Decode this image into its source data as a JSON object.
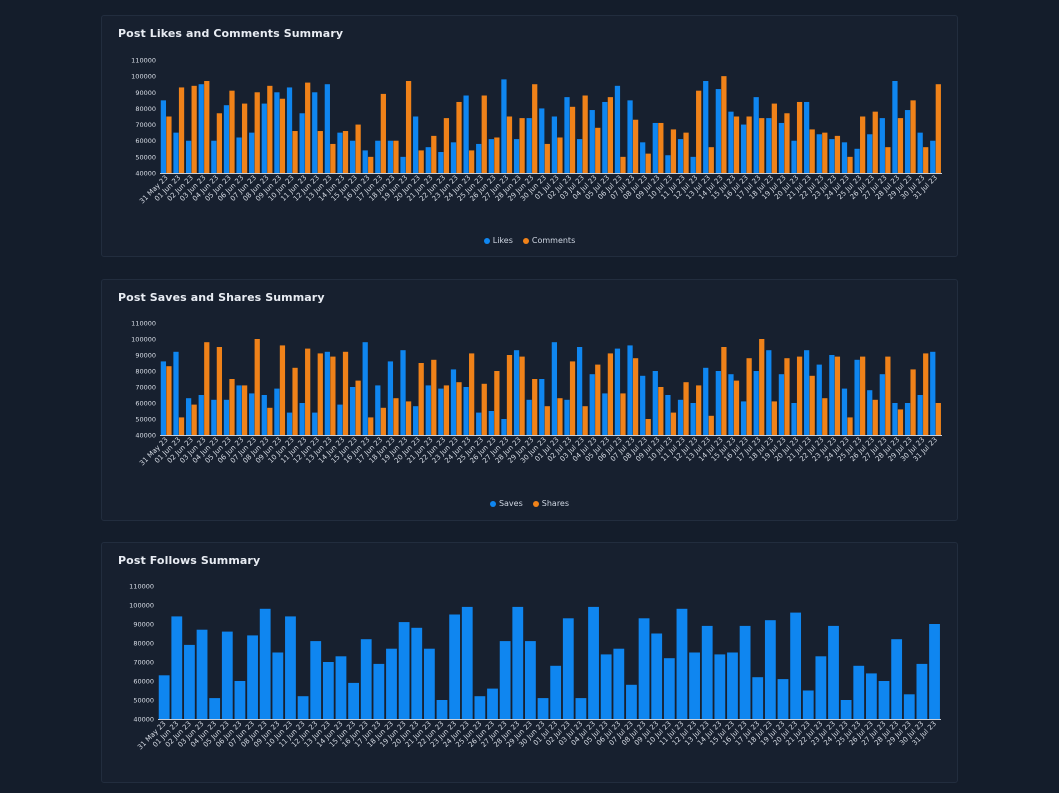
{
  "colors": {
    "blue": "#0f86f0",
    "orange": "#f08219",
    "axis": "#c9cfd9",
    "text": "#d9dee7"
  },
  "dates": [
    "31 May 23",
    "01 Jun 23",
    "02 Jun 23",
    "03 Jun 23",
    "04 Jun 23",
    "05 Jun 23",
    "06 Jun 23",
    "07 Jun 23",
    "08 Jun 23",
    "09 Jun 23",
    "10 Jun 23",
    "11 Jun 23",
    "12 Jun 23",
    "13 Jun 23",
    "14 Jun 23",
    "15 Jun 23",
    "16 Jun 23",
    "17 Jun 23",
    "18 Jun 23",
    "19 Jun 23",
    "20 Jun 23",
    "21 Jun 23",
    "22 Jun 23",
    "23 Jun 23",
    "24 Jun 23",
    "25 Jun 23",
    "26 Jun 23",
    "27 Jun 23",
    "28 Jun 23",
    "29 Jun 23",
    "30 Jun 23",
    "01 Jul 23",
    "02 Jul 23",
    "03 Jul 23",
    "04 Jul 23",
    "05 Jul 23",
    "06 Jul 23",
    "07 Jul 23",
    "08 Jul 23",
    "09 Jul 23",
    "10 Jul 23",
    "11 Jul 23",
    "12 Jul 23",
    "13 Jul 23",
    "14 Jul 23",
    "15 Jul 23",
    "16 Jul 23",
    "17 Jul 23",
    "18 Jul 23",
    "19 Jul 23",
    "20 Jul 23",
    "21 Jul 23",
    "22 Jul 23",
    "23 Jul 23",
    "24 Jul 23",
    "25 Jul 23",
    "26 Jul 23",
    "27 Jul 23",
    "28 Jul 23",
    "29 Jul 23",
    "30 Jul 23",
    "31 Jul 23"
  ],
  "chart_data": [
    {
      "type": "bar",
      "title": "Post Likes and Comments Summary",
      "ylim": [
        40000,
        110000
      ],
      "yticks": [
        "110000",
        "100000",
        "90000",
        "80000",
        "70000",
        "60000",
        "50000",
        "40000"
      ],
      "legend_position": "bottom-center",
      "series": [
        {
          "name": "Likes",
          "color": "#0f86f0",
          "values": [
            85000,
            65000,
            60000,
            95000,
            60000,
            82000,
            62000,
            65000,
            83000,
            90000,
            93000,
            77000,
            90000,
            95000,
            65000,
            60000,
            54000,
            60000,
            60000,
            50000,
            75000,
            56000,
            53000,
            59000,
            88000,
            58000,
            61000,
            98000,
            61000,
            74000,
            80000,
            75000,
            87000,
            61000,
            79000,
            84000,
            94000,
            85000,
            59000,
            71000,
            51000,
            61000,
            50000,
            97000,
            92000,
            78000,
            70000,
            87000,
            74000,
            71000,
            60000,
            84000,
            64000,
            61000,
            59000,
            55000,
            64000,
            74000,
            97000,
            79000,
            65000,
            60000
          ]
        },
        {
          "name": "Comments",
          "color": "#f08219",
          "values": [
            75000,
            93000,
            94000,
            97000,
            77000,
            91000,
            83000,
            90000,
            94000,
            86000,
            66000,
            96000,
            66000,
            58000,
            66000,
            70000,
            50000,
            89000,
            60000,
            97000,
            54000,
            63000,
            74000,
            84000,
            54000,
            88000,
            62000,
            75000,
            74000,
            95000,
            58000,
            62000,
            81000,
            88000,
            68000,
            87000,
            50000,
            73000,
            52000,
            71000,
            67000,
            65000,
            91000,
            56000,
            100000,
            75000,
            75000,
            74000,
            83000,
            77000,
            84000,
            67000,
            65000,
            63000,
            50000,
            75000,
            78000,
            56000,
            74000,
            85000,
            56000,
            95000
          ]
        }
      ]
    },
    {
      "type": "bar",
      "title": "Post Saves and Shares Summary",
      "ylim": [
        40000,
        110000
      ],
      "yticks": [
        "110000",
        "100000",
        "90000",
        "80000",
        "70000",
        "60000",
        "50000",
        "40000"
      ],
      "legend_position": "bottom-center",
      "series": [
        {
          "name": "Saves",
          "color": "#0f86f0",
          "values": [
            86000,
            92000,
            63000,
            65000,
            62000,
            62000,
            71000,
            66000,
            65000,
            69000,
            54000,
            60000,
            54000,
            92000,
            59000,
            70000,
            98000,
            71000,
            86000,
            93000,
            58000,
            71000,
            69000,
            81000,
            70000,
            54000,
            55000,
            50000,
            93000,
            62000,
            75000,
            98000,
            62000,
            95000,
            78000,
            66000,
            94000,
            96000,
            77000,
            80000,
            65000,
            62000,
            60000,
            82000,
            80000,
            78000,
            61000,
            80000,
            93000,
            78000,
            60000,
            93000,
            84000,
            90000,
            69000,
            87000,
            68000,
            78000,
            60000,
            60000,
            65000,
            92000
          ]
        },
        {
          "name": "Shares",
          "color": "#f08219",
          "values": [
            83000,
            51000,
            59000,
            98000,
            95000,
            75000,
            71000,
            100000,
            57000,
            96000,
            82000,
            94000,
            91000,
            89000,
            92000,
            74000,
            51000,
            57000,
            63000,
            61000,
            85000,
            87000,
            71000,
            73000,
            91000,
            72000,
            80000,
            90000,
            89000,
            75000,
            58000,
            63000,
            86000,
            58000,
            84000,
            91000,
            66000,
            88000,
            50000,
            70000,
            54000,
            73000,
            71000,
            52000,
            95000,
            74000,
            88000,
            100000,
            61000,
            88000,
            89000,
            77000,
            63000,
            89000,
            51000,
            89000,
            62000,
            89000,
            56000,
            81000,
            91000,
            60000
          ]
        }
      ]
    },
    {
      "type": "bar",
      "title": "Post Follows Summary",
      "ylim": [
        40000,
        110000
      ],
      "yticks": [
        "110000",
        "100000",
        "90000",
        "80000",
        "70000",
        "60000",
        "50000",
        "40000"
      ],
      "series": [
        {
          "color": "#0f86f0",
          "values": [
            63000,
            94000,
            79000,
            87000,
            51000,
            86000,
            60000,
            84000,
            98000,
            75000,
            94000,
            52000,
            81000,
            70000,
            73000,
            59000,
            82000,
            69000,
            77000,
            91000,
            88000,
            77000,
            50000,
            95000,
            99000,
            52000,
            56000,
            81000,
            99000,
            81000,
            51000,
            68000,
            93000,
            51000,
            99000,
            74000,
            77000,
            58000,
            93000,
            85000,
            72000,
            98000,
            75000,
            89000,
            74000,
            75000,
            89000,
            62000,
            92000,
            61000,
            96000,
            55000,
            73000,
            89000,
            50000,
            68000,
            64000,
            60000,
            82000,
            53000,
            69000,
            90000
          ]
        }
      ]
    }
  ]
}
